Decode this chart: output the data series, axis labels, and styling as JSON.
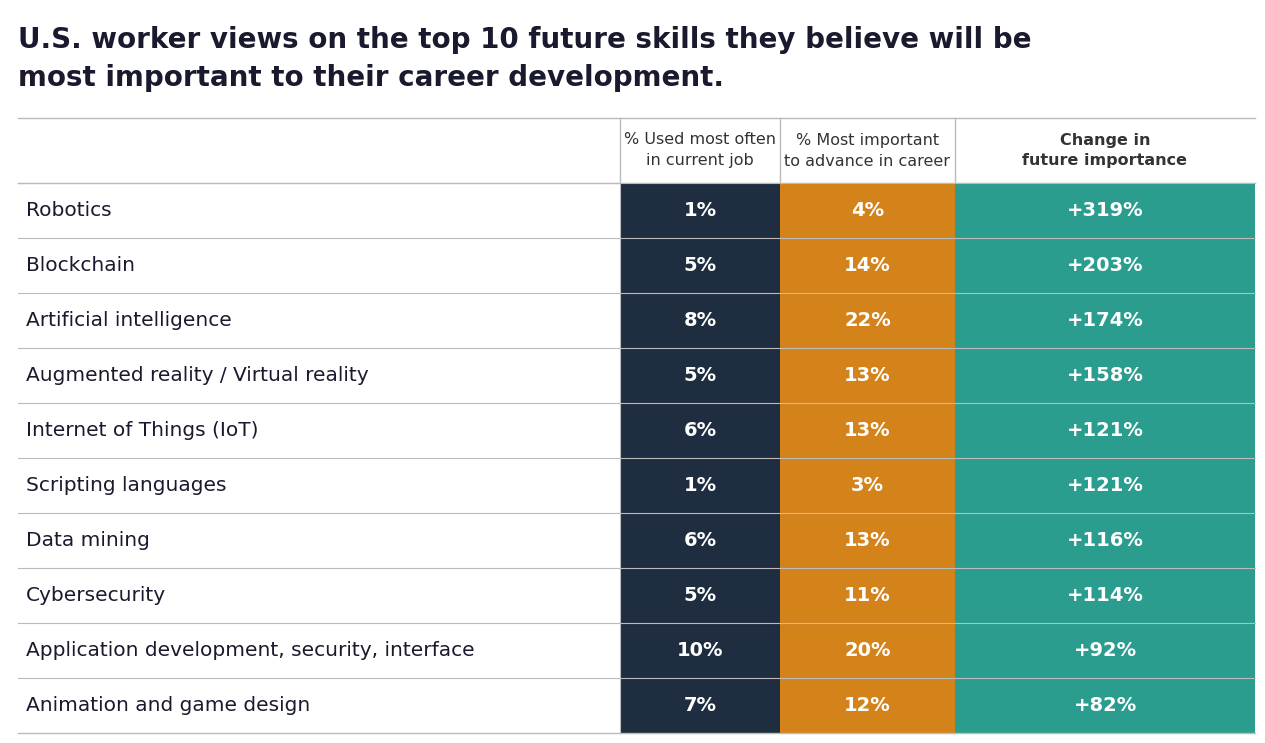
{
  "title_line1": "U.S. worker views on the top 10 future skills they believe will be",
  "title_line2": "most important to their career development.",
  "col_headers": [
    "% Used most often\nin current job",
    "% Most important\nto advance in career",
    "Change in\nfuture importance"
  ],
  "rows": [
    [
      "Robotics",
      "1%",
      "4%",
      "+319%"
    ],
    [
      "Blockchain",
      "5%",
      "14%",
      "+203%"
    ],
    [
      "Artificial intelligence",
      "8%",
      "22%",
      "+174%"
    ],
    [
      "Augmented reality / Virtual reality",
      "5%",
      "13%",
      "+158%"
    ],
    [
      "Internet of Things (IoT)",
      "6%",
      "13%",
      "+121%"
    ],
    [
      "Scripting languages",
      "1%",
      "3%",
      "+121%"
    ],
    [
      "Data mining",
      "6%",
      "13%",
      "+116%"
    ],
    [
      "Cybersecurity",
      "5%",
      "11%",
      "+114%"
    ],
    [
      "Application development, security, interface",
      "10%",
      "20%",
      "+92%"
    ],
    [
      "Animation and game design",
      "7%",
      "12%",
      "+82%"
    ]
  ],
  "col1_color": "#1e2d40",
  "col2_color": "#d4821a",
  "col3_color": "#2a9d8f",
  "header_text_color": "#333333",
  "cell_text_color": "#ffffff",
  "label_text_color": "#1a1a2e",
  "bg_color": "#ffffff",
  "line_color": "#bbbbbb",
  "title_fontsize": 20,
  "header_fontsize": 11.5,
  "cell_fontsize": 14,
  "label_fontsize": 14.5
}
